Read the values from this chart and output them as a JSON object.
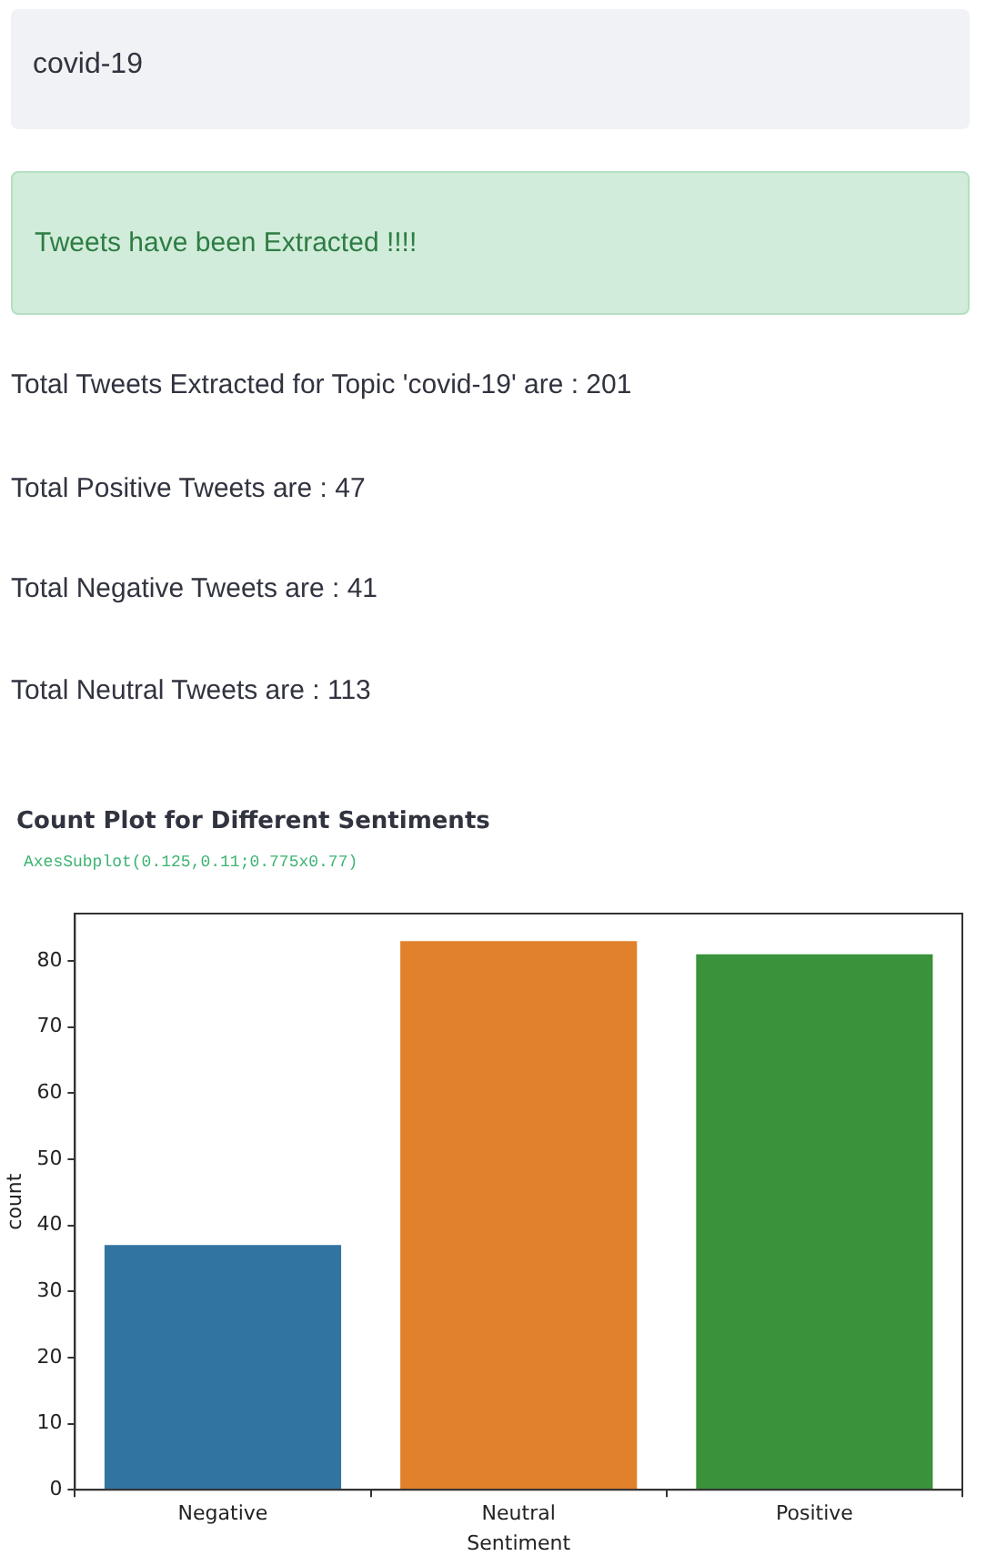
{
  "chart_data": {
    "type": "bar",
    "title": "Count Plot for Different Sentiments",
    "annotations": [
      "covid-19",
      "Tweets have been Extracted !!!!",
      "Total Tweets Extracted for Topic 'covid-19' are : 201",
      "Total Positive Tweets are : 47",
      "Total Negative Tweets are : 41",
      "Total Neutral Tweets are : 113",
      "AxesSubplot(0.125,0.11;0.775x0.77)"
    ],
    "categories": [
      "Negative",
      "Neutral",
      "Positive"
    ],
    "values": [
      37,
      83,
      81
    ],
    "colors": [
      "#3274a1",
      "#e1812c",
      "#3a923a"
    ],
    "xlabel": "Sentiment",
    "ylabel": "count",
    "ylim": [
      0,
      87.15
    ],
    "yticks": [
      0,
      10,
      20,
      30,
      40,
      50,
      60,
      70,
      80
    ],
    "grid": false,
    "legend": false
  }
}
